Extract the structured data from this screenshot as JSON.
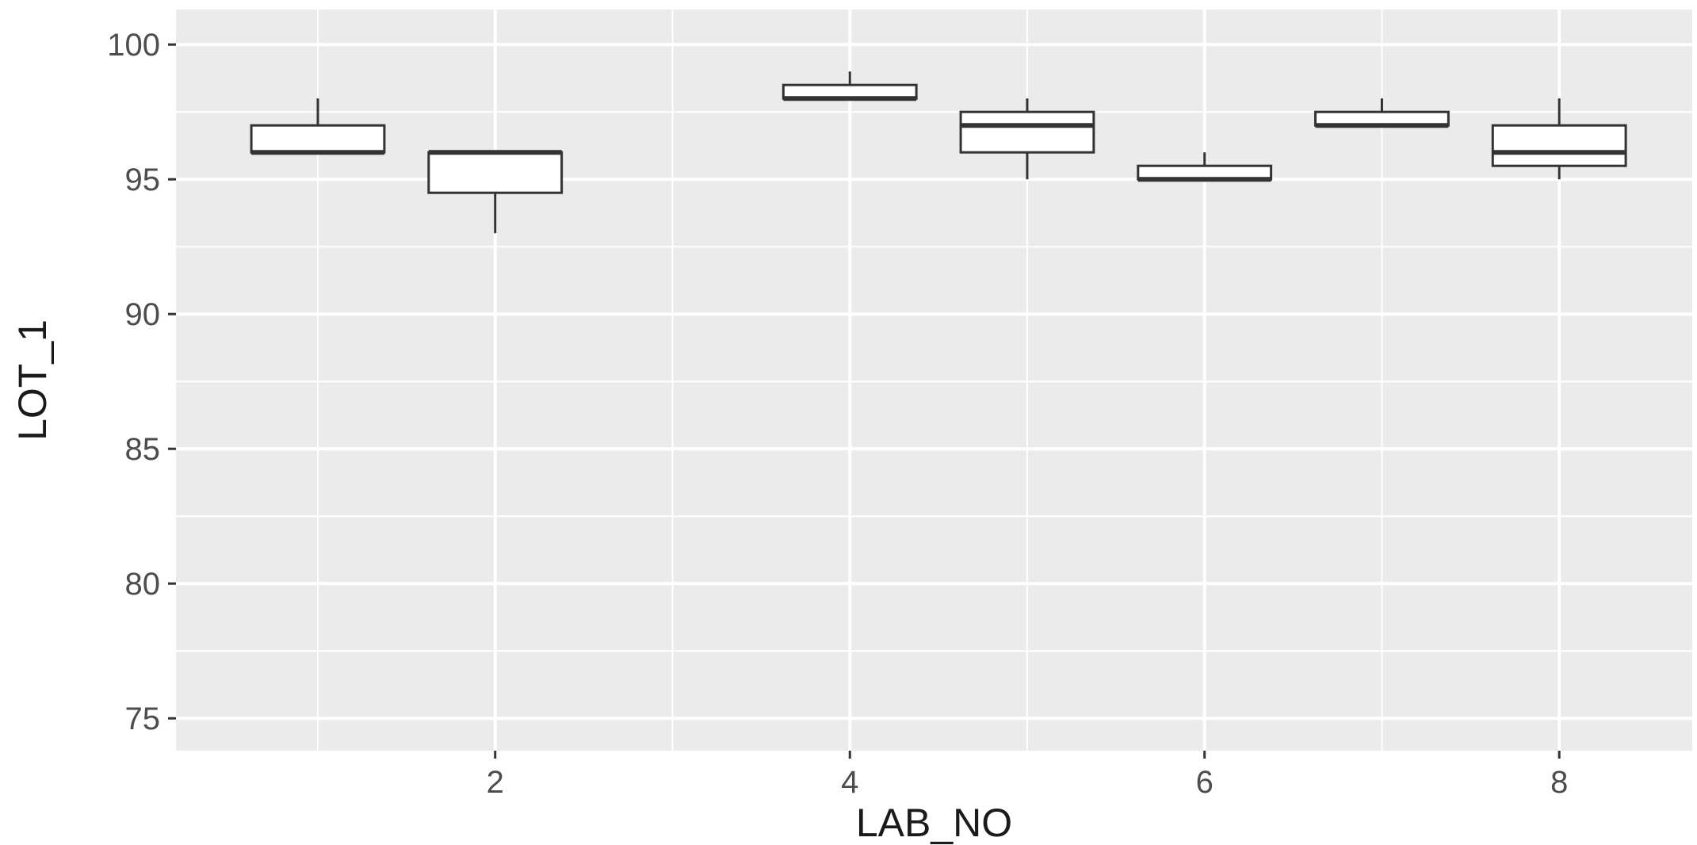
{
  "chart_data": {
    "type": "boxplot",
    "xlabel": "LAB_NO",
    "ylabel": "LOT_1",
    "xlim": [
      0.2,
      8.75
    ],
    "ylim": [
      73.8,
      101.3
    ],
    "x_ticks": [
      2,
      4,
      6,
      8
    ],
    "y_ticks": [
      75,
      80,
      85,
      90,
      95,
      100
    ],
    "grid": true,
    "background": "#ebebeb",
    "grid_color": "#ffffff",
    "box_fill": "#ffffff",
    "box_stroke": "#333333",
    "boxes": [
      {
        "x": 1,
        "min": 96,
        "q1": 96,
        "median": 96,
        "q3": 97,
        "max": 98
      },
      {
        "x": 2,
        "min": 93,
        "q1": 94.5,
        "median": 96,
        "q3": 96,
        "max": 96
      },
      {
        "x": 4,
        "min": 98,
        "q1": 98,
        "median": 98,
        "q3": 98.5,
        "max": 99
      },
      {
        "x": 5,
        "min": 95,
        "q1": 96,
        "median": 97,
        "q3": 97.5,
        "max": 98
      },
      {
        "x": 6,
        "min": 95,
        "q1": 95,
        "median": 95,
        "q3": 95.5,
        "max": 96
      },
      {
        "x": 7,
        "min": 97,
        "q1": 97,
        "median": 97,
        "q3": 97.5,
        "max": 98
      },
      {
        "x": 8,
        "min": 95,
        "q1": 95.5,
        "median": 96,
        "q3": 97,
        "max": 98
      }
    ]
  }
}
